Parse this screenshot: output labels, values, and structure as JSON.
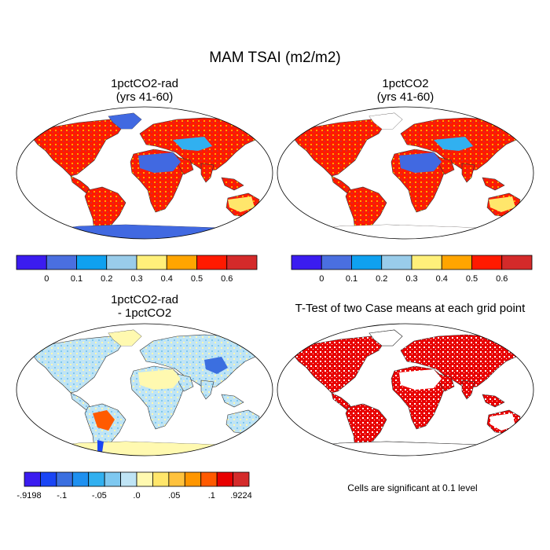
{
  "title": "MAM TSAI (m2/m2)",
  "panels": [
    {
      "title_line1": "1pctCO2-rad",
      "title_line2": "(yrs 41-60)"
    },
    {
      "title_line1": "1pctCO2",
      "title_line2": "(yrs 41-60)"
    },
    {
      "title_line1": "1pctCO2-rad",
      "title_line2": "- 1pctCO2"
    },
    {
      "title_line1": "T-Test of two Case means at each grid point",
      "title_line2": ""
    }
  ],
  "colorbar_main": {
    "colors": [
      "#3b1cf0",
      "#4a6fe0",
      "#0fa1f0",
      "#99ccea",
      "#fff07a",
      "#ffa500",
      "#ff1a00",
      "#d42a2a"
    ],
    "labels": [
      "0",
      "0.1",
      "0.2",
      "0.3",
      "0.4",
      "0.5",
      "0.6"
    ]
  },
  "colorbar_diff": {
    "colors": [
      "#3b1cf0",
      "#1a45f5",
      "#3b6fe0",
      "#1e90f0",
      "#31b0f0",
      "#7ec8f0",
      "#bfe4f5",
      "#fff9b0",
      "#ffe66b",
      "#ffc23d",
      "#ff9600",
      "#ff5a00",
      "#e80000",
      "#d42a2a"
    ],
    "labels": [
      "-.9198",
      "-.1",
      "-.05",
      ".0",
      ".05",
      ".1",
      ".9224"
    ]
  },
  "colors": {
    "ocean": "#ffffff",
    "land_main": "#ff6a00",
    "desert": "#4169e1",
    "diff_land": "#bfe4f5",
    "signif": "#e80000"
  },
  "note": "Cells are significant at 0.1 level"
}
